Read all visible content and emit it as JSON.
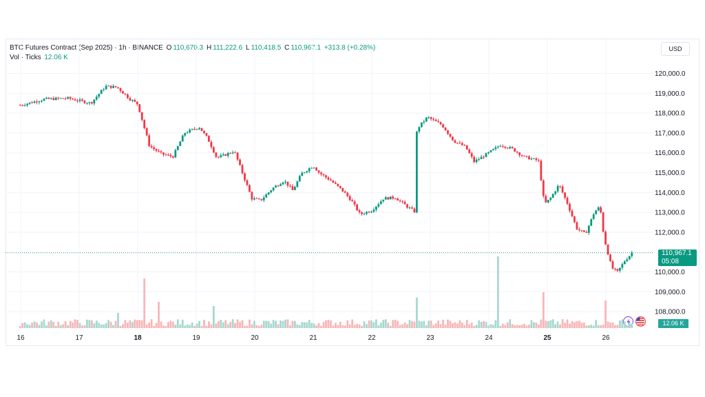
{
  "legend": {
    "symbol": "BTC Futures Contract (Sep 2025) · 1h · BINANCE",
    "open_label": "O",
    "open": "110,670.3",
    "high_label": "H",
    "high": "111,222.6",
    "low_label": "L",
    "low": "110,418.5",
    "close_label": "C",
    "close": "110,967.1",
    "change": "+313.8 (+0.28%)",
    "vol_label": "Vol · Ticks",
    "vol_value": "12.06 K"
  },
  "currency": "USD",
  "last_price": {
    "value": "110,967.1",
    "countdown": "05:08"
  },
  "volume_tag": "12.06 K",
  "icons": {
    "left": "lightning-icon",
    "right": "us-flag-icon"
  },
  "colors": {
    "up": "#089981",
    "down": "#f23645",
    "vol_up": "#a7d8cf",
    "vol_down": "#f7b6b8",
    "grid": "#f0f3fa"
  },
  "chart_data": {
    "type": "candlestick",
    "title": "BTC Futures Contract (Sep 2025) · 1h · BINANCE",
    "x_tick_labels": [
      "16",
      "17",
      "18",
      "19",
      "20",
      "21",
      "22",
      "23",
      "24",
      "25",
      "26"
    ],
    "bold_tick_labels": [
      "18",
      "25"
    ],
    "y_tick_labels": [
      "120,000.0",
      "119,000.0",
      "118,000.0",
      "117,000.0",
      "116,000.0",
      "115,000.0",
      "114,000.0",
      "113,000.0",
      "112,000.0",
      "110,000.0",
      "109,000.0",
      "108,000.0"
    ],
    "ylim": [
      107700,
      120500
    ],
    "grid": true,
    "last_close": 110967.1,
    "price_path": [
      [
        "16",
        118400
      ],
      [
        "16.4",
        118700
      ],
      [
        "16.8",
        118750
      ],
      [
        "17.2",
        118500
      ],
      [
        "17.45",
        119350
      ],
      [
        "17.65",
        119300
      ],
      [
        "17.85",
        118750
      ],
      [
        "18.0",
        118450
      ],
      [
        "18.2",
        116350
      ],
      [
        "18.4",
        115950
      ],
      [
        "18.6",
        115800
      ],
      [
        "18.8",
        117000
      ],
      [
        "19.05",
        117300
      ],
      [
        "19.2",
        116700
      ],
      [
        "19.35",
        115750
      ],
      [
        "19.5",
        115900
      ],
      [
        "19.65",
        116100
      ],
      [
        "19.8",
        114900
      ],
      [
        "19.95",
        113700
      ],
      [
        "20.1",
        113600
      ],
      [
        "20.3",
        114200
      ],
      [
        "20.5",
        114600
      ],
      [
        "20.65",
        114100
      ],
      [
        "20.8",
        114950
      ],
      [
        "21.0",
        115350
      ],
      [
        "21.1",
        115000
      ],
      [
        "21.3",
        114600
      ],
      [
        "21.5",
        114100
      ],
      [
        "21.65",
        113600
      ],
      [
        "21.8",
        112900
      ],
      [
        "22.0",
        113100
      ],
      [
        "22.2",
        113700
      ],
      [
        "22.4",
        113750
      ],
      [
        "22.6",
        113300
      ],
      [
        "22.75",
        113000
      ],
      [
        "22.77",
        117200
      ],
      [
        "22.95",
        117800
      ],
      [
        "23.2",
        117400
      ],
      [
        "23.4",
        116600
      ],
      [
        "23.6",
        116300
      ],
      [
        "23.75",
        115550
      ],
      [
        "24.0",
        116000
      ],
      [
        "24.2",
        116400
      ],
      [
        "24.4",
        116200
      ],
      [
        "24.6",
        115800
      ],
      [
        "24.85",
        115600
      ],
      [
        "24.95",
        113400
      ],
      [
        "25.05",
        113700
      ],
      [
        "25.2",
        114400
      ],
      [
        "25.35",
        113400
      ],
      [
        "25.5",
        112200
      ],
      [
        "25.65",
        111900
      ],
      [
        "25.8",
        113000
      ],
      [
        "25.9",
        113300
      ],
      [
        "25.97",
        111700
      ],
      [
        "26.1",
        110200
      ],
      [
        "26.2",
        110000
      ],
      [
        "26.32",
        110550
      ],
      [
        "26.45",
        110967.1
      ]
    ],
    "volume_spikes": [
      [
        "17.65",
        "up"
      ],
      [
        "18.1",
        "down"
      ],
      [
        "18.35",
        "down"
      ],
      [
        "19.3",
        "up"
      ],
      [
        "22.75",
        "up"
      ],
      [
        "24.15",
        "up"
      ],
      [
        "24.95",
        "down"
      ],
      [
        "26.0",
        "down"
      ]
    ]
  }
}
